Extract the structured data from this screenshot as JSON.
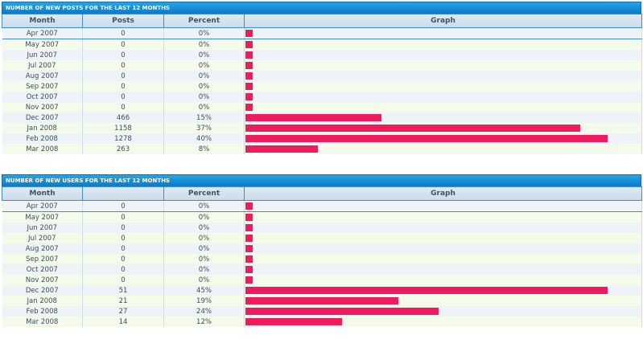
{
  "panels": [
    {
      "title": "NUMBER OF NEW POSTS FOR THE LAST 12 MONTHS",
      "headers": {
        "month": "Month",
        "posts": "Posts",
        "percent": "Percent",
        "graph": "Graph"
      },
      "rows": [
        {
          "month": "Apr 2007",
          "value": "0",
          "percent": "0%",
          "bar": 0.0
        },
        {
          "month": "May 2007",
          "value": "0",
          "percent": "0%",
          "bar": 0.0
        },
        {
          "month": "Jun 2007",
          "value": "0",
          "percent": "0%",
          "bar": 0.0
        },
        {
          "month": "Jul 2007",
          "value": "0",
          "percent": "0%",
          "bar": 0.0
        },
        {
          "month": "Aug 2007",
          "value": "0",
          "percent": "0%",
          "bar": 0.0
        },
        {
          "month": "Sep 2007",
          "value": "0",
          "percent": "0%",
          "bar": 0.0
        },
        {
          "month": "Oct 2007",
          "value": "0",
          "percent": "0%",
          "bar": 0.0
        },
        {
          "month": "Nov 2007",
          "value": "0",
          "percent": "0%",
          "bar": 0.0
        },
        {
          "month": "Dec 2007",
          "value": "466",
          "percent": "15%",
          "bar": 0.15
        },
        {
          "month": "Jan 2008",
          "value": "1158",
          "percent": "37%",
          "bar": 0.37
        },
        {
          "month": "Feb 2008",
          "value": "1278",
          "percent": "40%",
          "bar": 0.4
        },
        {
          "month": "Mar 2008",
          "value": "263",
          "percent": "8%",
          "bar": 0.08
        }
      ],
      "max_percent": 0.4
    },
    {
      "title": "NUMBER OF NEW USERS FOR THE LAST 12 MONTHS",
      "headers": {
        "month": "Month",
        "posts": "",
        "percent": "Percent",
        "graph": "Graph"
      },
      "rows": [
        {
          "month": "Apr 2007",
          "value": "0",
          "percent": "0%",
          "bar": 0.0
        },
        {
          "month": "May 2007",
          "value": "0",
          "percent": "0%",
          "bar": 0.0
        },
        {
          "month": "Jun 2007",
          "value": "0",
          "percent": "0%",
          "bar": 0.0
        },
        {
          "month": "Jul 2007",
          "value": "0",
          "percent": "0%",
          "bar": 0.0
        },
        {
          "month": "Aug 2007",
          "value": "0",
          "percent": "0%",
          "bar": 0.0
        },
        {
          "month": "Sep 2007",
          "value": "0",
          "percent": "0%",
          "bar": 0.0
        },
        {
          "month": "Oct 2007",
          "value": "0",
          "percent": "0%",
          "bar": 0.0
        },
        {
          "month": "Nov 2007",
          "value": "0",
          "percent": "0%",
          "bar": 0.0
        },
        {
          "month": "Dec 2007",
          "value": "51",
          "percent": "45%",
          "bar": 0.45
        },
        {
          "month": "Jan 2008",
          "value": "21",
          "percent": "19%",
          "bar": 0.19
        },
        {
          "month": "Feb 2008",
          "value": "27",
          "percent": "24%",
          "bar": 0.24
        },
        {
          "month": "Mar 2008",
          "value": "14",
          "percent": "12%",
          "bar": 0.12
        }
      ],
      "max_percent": 0.45
    }
  ],
  "colors": {
    "bar": "#ee1c5c",
    "header_blue": "#0b79c6"
  }
}
